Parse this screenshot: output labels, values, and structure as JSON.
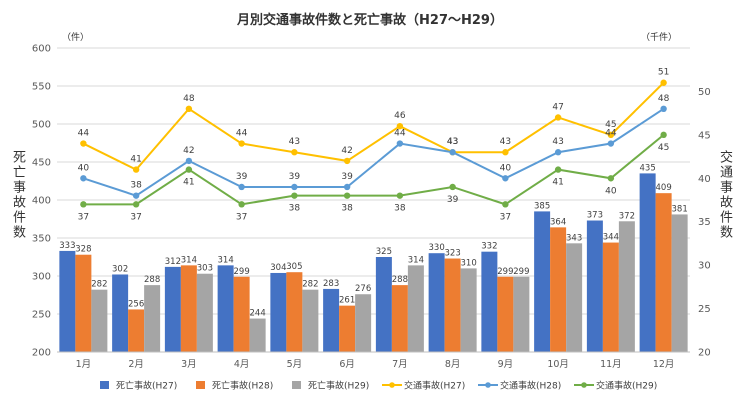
{
  "chart_data": {
    "type": "bar",
    "title": "月別交通事故件数と死亡事故（H27〜H29）",
    "categories": [
      "1月",
      "2月",
      "3月",
      "4月",
      "5月",
      "6月",
      "7月",
      "8月",
      "9月",
      "10月",
      "11月",
      "12月"
    ],
    "left_axis": {
      "label": "死亡事故件数",
      "unit": "（件）",
      "ylim": [
        200,
        600
      ],
      "ticks": [
        200,
        250,
        300,
        350,
        400,
        450,
        500,
        550,
        600
      ]
    },
    "right_axis": {
      "label": "交通事故件数",
      "unit": "（千件）",
      "ylim": [
        20,
        55
      ],
      "ticks": [
        20,
        25,
        30,
        35,
        40,
        45,
        50
      ]
    },
    "series": [
      {
        "name": "死亡事故(H27)",
        "type": "bar",
        "axis": "left",
        "color": "#4472C4",
        "values": [
          333,
          302,
          312,
          314,
          304,
          283,
          325,
          330,
          332,
          385,
          373,
          435
        ]
      },
      {
        "name": "死亡事故(H28)",
        "type": "bar",
        "axis": "left",
        "color": "#ED7D31",
        "values": [
          328,
          256,
          314,
          299,
          305,
          261,
          288,
          323,
          299,
          364,
          344,
          409
        ]
      },
      {
        "name": "死亡事故(H29)",
        "type": "bar",
        "axis": "left",
        "color": "#A5A5A5",
        "values": [
          282,
          288,
          303,
          244,
          282,
          276,
          314,
          310,
          299,
          343,
          372,
          381
        ]
      },
      {
        "name": "交通事故(H27)",
        "type": "line",
        "axis": "right",
        "color": "#FFC000",
        "values": [
          44,
          41,
          48,
          44,
          43,
          42,
          46,
          43,
          43,
          47,
          45,
          51
        ]
      },
      {
        "name": "交通事故(H28)",
        "type": "line",
        "axis": "right",
        "color": "#5B9BD5",
        "values": [
          40,
          38,
          42,
          39,
          39,
          39,
          44,
          43,
          40,
          43,
          44,
          48
        ]
      },
      {
        "name": "交通事故(H29)",
        "type": "line",
        "axis": "right",
        "color": "#70AD47",
        "values": [
          37,
          37,
          41,
          37,
          38,
          38,
          38,
          39,
          37,
          41,
          40,
          45
        ]
      }
    ],
    "grid": true,
    "legend": "bottom"
  }
}
